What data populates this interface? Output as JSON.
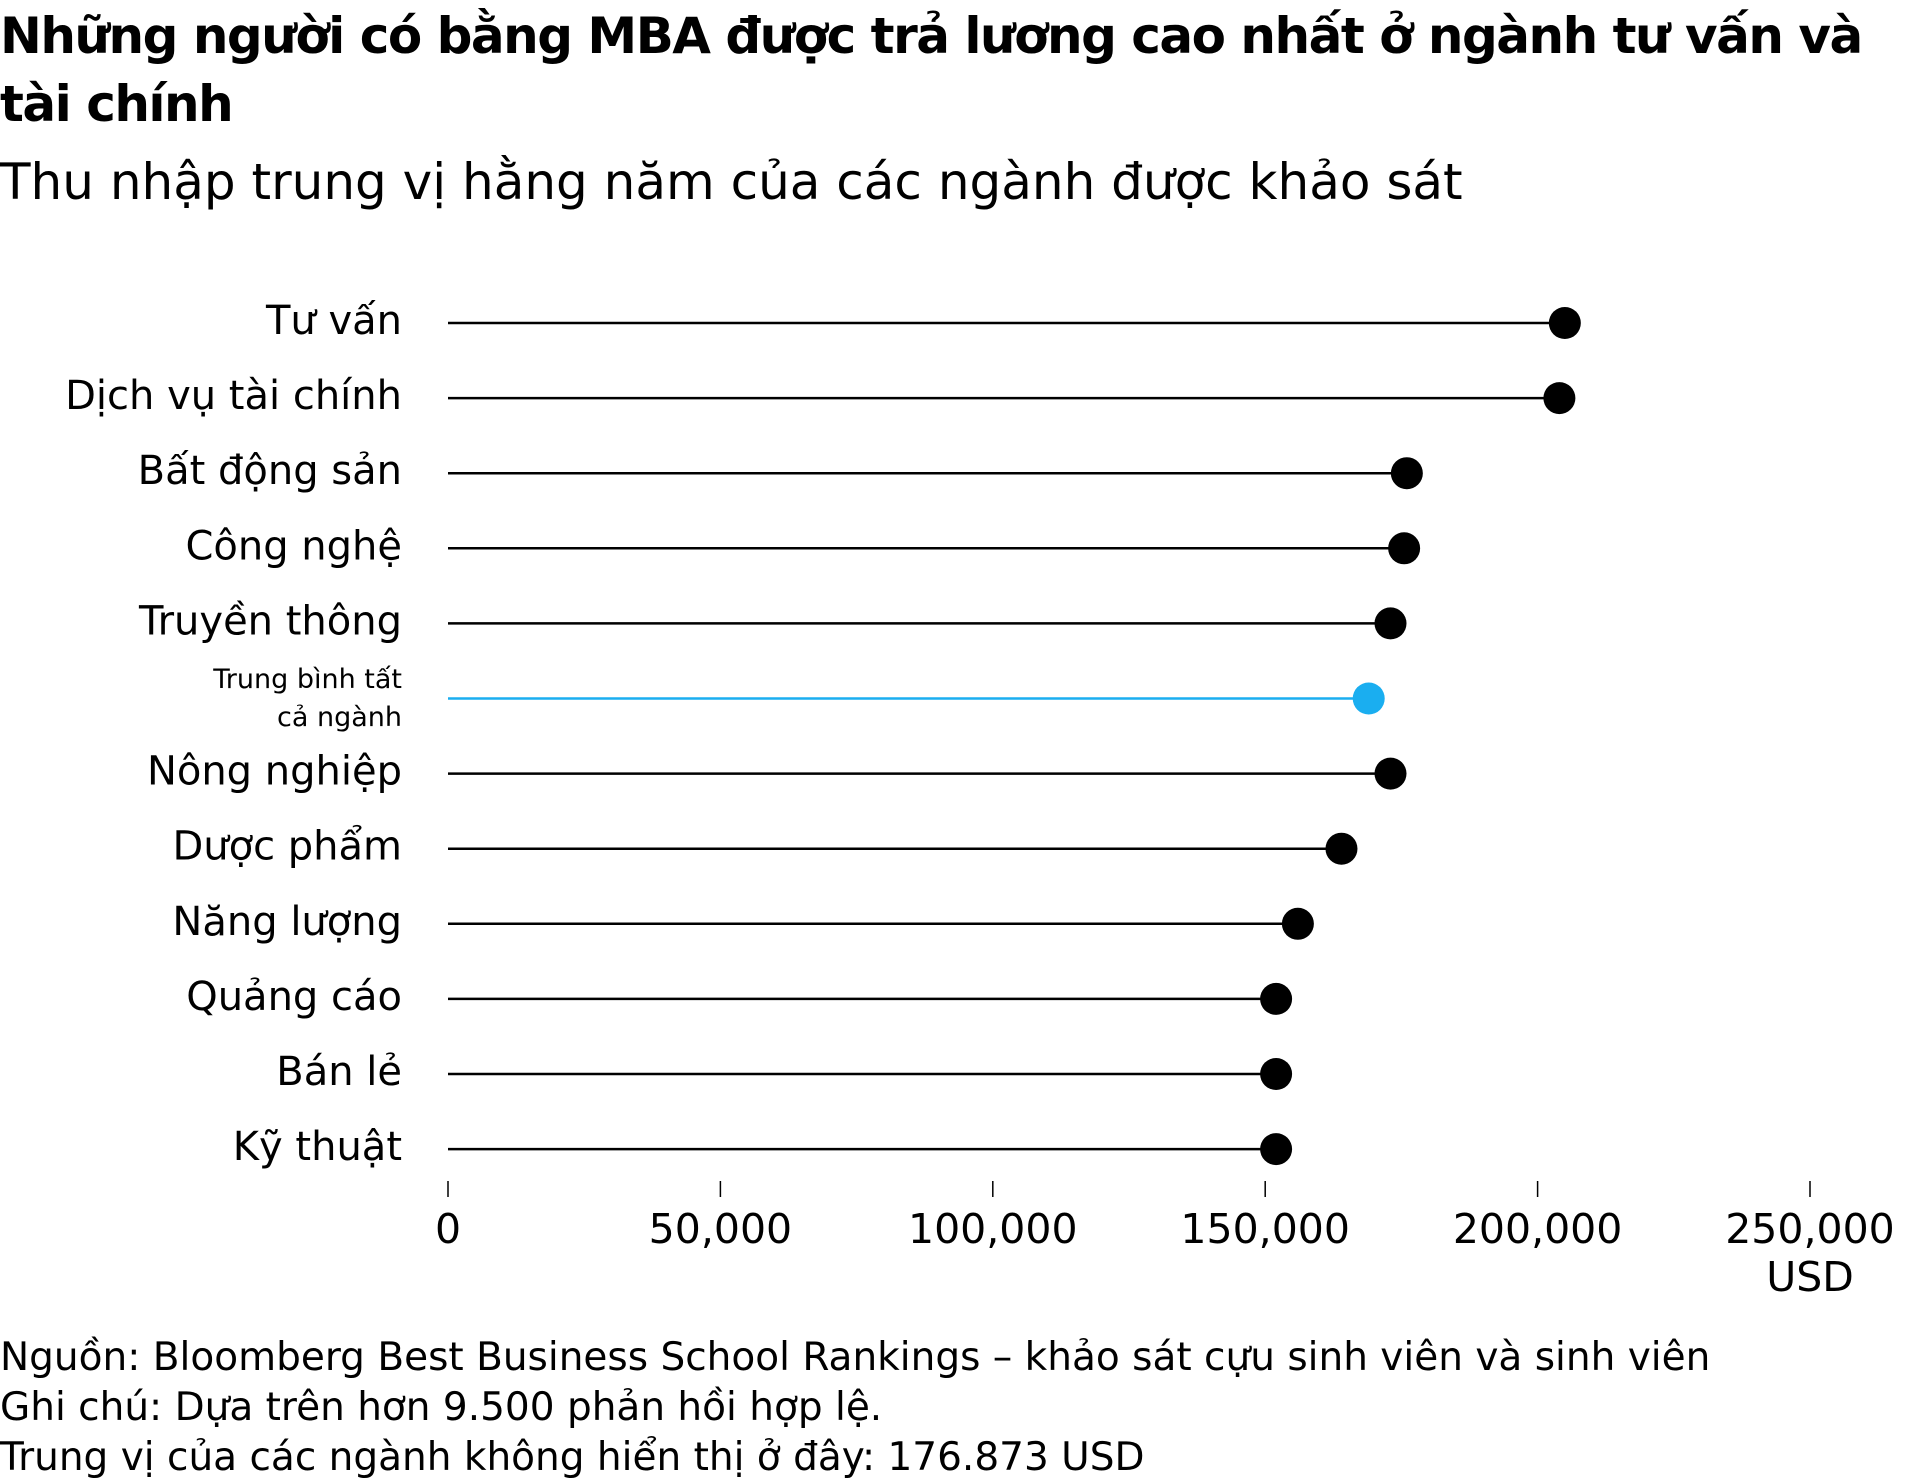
{
  "chart_data": {
    "type": "lollipop",
    "title": "Những người có bằng MBA được trả lương cao nhất ở ngành tư vấn và tài chính",
    "subtitle": "Thu nhập trung vị hằng năm của các ngành được khảo sát",
    "categories": [
      "Tư vấn",
      "Dịch vụ tài chính",
      "Bất động sản",
      "Công nghệ",
      "Truyền thông",
      "Trung bình tất cả ngành",
      "Nông nghiệp",
      "Dược phẩm",
      "Năng lượng",
      "Quảng cáo",
      "Bán lẻ",
      "Kỹ thuật"
    ],
    "values": [
      205000,
      204000,
      176000,
      175500,
      173000,
      169000,
      173000,
      164000,
      156000,
      152000,
      152000,
      152000
    ],
    "colors": [
      "#000000",
      "#000000",
      "#000000",
      "#000000",
      "#000000",
      "#1aaef0",
      "#000000",
      "#000000",
      "#000000",
      "#000000",
      "#000000",
      "#000000"
    ],
    "xlim": [
      0,
      250000
    ],
    "xticks": [
      0,
      {
        "value": 50000,
        "label": "50,000"
      },
      {
        "value": 100000,
        "label": "100,000"
      },
      {
        "value": 150000,
        "label": "150,000"
      },
      {
        "value": 200000,
        "label": "200,000"
      },
      {
        "value": 250000,
        "label": "250,000"
      }
    ],
    "xlabel": "USD",
    "notes": [
      "Nguồn: Bloomberg Best Business School Rankings – khảo sát cựu sinh viên và sinh viên",
      "Ghi chú: Dựa trên hơn 9.500 phản hồi hợp lệ.",
      "Trung vị của các ngành không hiển thị ở đây: 176.873 USD"
    ]
  }
}
